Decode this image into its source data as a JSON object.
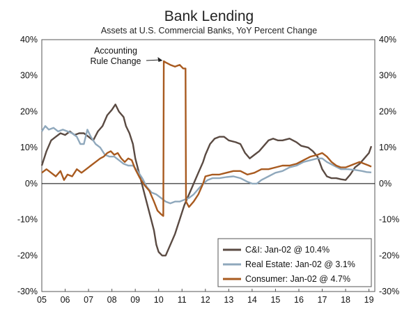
{
  "chart_data": {
    "type": "line",
    "title": "Bank Lending",
    "subtitle": "Assets at U.S. Commercial Banks, YoY Percent Change",
    "xlabel": "",
    "ylabel": "",
    "xlim": [
      2005.0,
      2019.25
    ],
    "ylim": [
      -30,
      40
    ],
    "x_ticks": [
      "05",
      "06",
      "07",
      "08",
      "09",
      "10",
      "11",
      "12",
      "13",
      "14",
      "15",
      "16",
      "17",
      "18",
      "19"
    ],
    "y_ticks_left": [
      "40%",
      "30%",
      "20%",
      "10%",
      "0%",
      "-10%",
      "-20%",
      "-30%"
    ],
    "y_ticks_right": [
      "40%",
      "30%",
      "20%",
      "10%",
      "0%",
      "-10%",
      "-20%",
      "-30%"
    ],
    "y_tick_values": [
      40,
      30,
      20,
      10,
      0,
      -10,
      -20,
      -30
    ],
    "annotation": {
      "line1": "Accounting",
      "line2": "Rule Change",
      "x": 2010.2,
      "y": 34
    },
    "legend_position": "bottom-right",
    "series": [
      {
        "name": "C&I: Jan-02 @ 10.4%",
        "color": "#5a4a42",
        "points": [
          [
            2005.0,
            5
          ],
          [
            2005.2,
            9
          ],
          [
            2005.4,
            12
          ],
          [
            2005.6,
            13
          ],
          [
            2005.8,
            14
          ],
          [
            2006.0,
            13.5
          ],
          [
            2006.2,
            14.5
          ],
          [
            2006.4,
            13.5
          ],
          [
            2006.6,
            14
          ],
          [
            2006.8,
            14
          ],
          [
            2007.0,
            13
          ],
          [
            2007.2,
            12
          ],
          [
            2007.4,
            14.5
          ],
          [
            2007.6,
            16
          ],
          [
            2007.8,
            19
          ],
          [
            2008.0,
            20.5
          ],
          [
            2008.15,
            22
          ],
          [
            2008.3,
            20
          ],
          [
            2008.5,
            18.5
          ],
          [
            2008.6,
            16
          ],
          [
            2008.75,
            14
          ],
          [
            2008.9,
            11
          ],
          [
            2009.0,
            7
          ],
          [
            2009.2,
            2
          ],
          [
            2009.4,
            -3
          ],
          [
            2009.6,
            -8
          ],
          [
            2009.8,
            -13
          ],
          [
            2009.9,
            -17
          ],
          [
            2010.0,
            -19
          ],
          [
            2010.15,
            -20
          ],
          [
            2010.3,
            -20
          ],
          [
            2010.5,
            -17
          ],
          [
            2010.7,
            -14
          ],
          [
            2010.9,
            -10
          ],
          [
            2011.1,
            -6
          ],
          [
            2011.3,
            -3
          ],
          [
            2011.5,
            0
          ],
          [
            2011.7,
            3
          ],
          [
            2011.9,
            6
          ],
          [
            2012.0,
            8
          ],
          [
            2012.2,
            11
          ],
          [
            2012.4,
            12.5
          ],
          [
            2012.6,
            13
          ],
          [
            2012.8,
            13
          ],
          [
            2013.0,
            12
          ],
          [
            2013.3,
            11.5
          ],
          [
            2013.5,
            11
          ],
          [
            2013.7,
            8.5
          ],
          [
            2013.9,
            7
          ],
          [
            2014.1,
            8
          ],
          [
            2014.3,
            9
          ],
          [
            2014.5,
            10.5
          ],
          [
            2014.7,
            12
          ],
          [
            2014.9,
            12.5
          ],
          [
            2015.1,
            12
          ],
          [
            2015.3,
            12
          ],
          [
            2015.6,
            12.5
          ],
          [
            2015.9,
            11.5
          ],
          [
            2016.1,
            10.5
          ],
          [
            2016.4,
            10
          ],
          [
            2016.6,
            9
          ],
          [
            2016.8,
            7.5
          ],
          [
            2017.0,
            4
          ],
          [
            2017.2,
            2
          ],
          [
            2017.4,
            1.5
          ],
          [
            2017.6,
            1.5
          ],
          [
            2017.8,
            1.2
          ],
          [
            2018.0,
            1
          ],
          [
            2018.2,
            2.5
          ],
          [
            2018.4,
            4.5
          ],
          [
            2018.6,
            5.5
          ],
          [
            2018.8,
            7
          ],
          [
            2019.0,
            8.5
          ],
          [
            2019.1,
            10.4
          ]
        ]
      },
      {
        "name": "Real Estate: Jan-02 @ 3.1%",
        "color": "#8fa8bc",
        "points": [
          [
            2005.0,
            14.5
          ],
          [
            2005.15,
            16
          ],
          [
            2005.3,
            15
          ],
          [
            2005.5,
            15.5
          ],
          [
            2005.7,
            14.5
          ],
          [
            2005.9,
            15
          ],
          [
            2006.1,
            14.5
          ],
          [
            2006.3,
            14
          ],
          [
            2006.5,
            13
          ],
          [
            2006.65,
            11
          ],
          [
            2006.8,
            11
          ],
          [
            2006.95,
            15
          ],
          [
            2007.1,
            13
          ],
          [
            2007.3,
            11
          ],
          [
            2007.5,
            10
          ],
          [
            2007.7,
            8
          ],
          [
            2007.9,
            7.5
          ],
          [
            2008.1,
            7.5
          ],
          [
            2008.3,
            6.5
          ],
          [
            2008.5,
            5.5
          ],
          [
            2008.7,
            5
          ],
          [
            2008.9,
            5
          ],
          [
            2009.1,
            3.5
          ],
          [
            2009.3,
            1.5
          ],
          [
            2009.5,
            -1
          ],
          [
            2009.7,
            -2.5
          ],
          [
            2009.9,
            -3
          ],
          [
            2010.1,
            -4
          ],
          [
            2010.3,
            -5
          ],
          [
            2010.5,
            -5.5
          ],
          [
            2010.7,
            -5
          ],
          [
            2010.9,
            -5
          ],
          [
            2011.1,
            -4.5
          ],
          [
            2011.3,
            -4
          ],
          [
            2011.5,
            -3
          ],
          [
            2011.7,
            -1.5
          ],
          [
            2011.9,
            0
          ],
          [
            2012.1,
            1
          ],
          [
            2012.3,
            1.5
          ],
          [
            2012.6,
            1.5
          ],
          [
            2012.9,
            1.8
          ],
          [
            2013.2,
            2
          ],
          [
            2013.5,
            1.5
          ],
          [
            2013.8,
            0.5
          ],
          [
            2014.0,
            0
          ],
          [
            2014.2,
            0
          ],
          [
            2014.4,
            1
          ],
          [
            2014.7,
            2
          ],
          [
            2015.0,
            3
          ],
          [
            2015.3,
            3.5
          ],
          [
            2015.6,
            4.5
          ],
          [
            2015.9,
            5
          ],
          [
            2016.2,
            6
          ],
          [
            2016.5,
            6.5
          ],
          [
            2016.8,
            7
          ],
          [
            2017.0,
            7
          ],
          [
            2017.2,
            6
          ],
          [
            2017.5,
            5
          ],
          [
            2017.8,
            4
          ],
          [
            2018.1,
            4
          ],
          [
            2018.4,
            3.8
          ],
          [
            2018.7,
            3.5
          ],
          [
            2018.9,
            3.2
          ],
          [
            2019.1,
            3.1
          ]
        ]
      },
      {
        "name": "Consumer: Jan-02 @ 4.7%",
        "color": "#a85a1f",
        "points": [
          [
            2005.0,
            3
          ],
          [
            2005.2,
            4
          ],
          [
            2005.4,
            3
          ],
          [
            2005.6,
            2
          ],
          [
            2005.8,
            3.5
          ],
          [
            2005.95,
            1
          ],
          [
            2006.1,
            2.5
          ],
          [
            2006.3,
            2
          ],
          [
            2006.5,
            4
          ],
          [
            2006.7,
            3
          ],
          [
            2006.9,
            4
          ],
          [
            2007.1,
            5
          ],
          [
            2007.3,
            6
          ],
          [
            2007.5,
            7
          ],
          [
            2007.65,
            7.5
          ],
          [
            2007.8,
            8.5
          ],
          [
            2007.95,
            9
          ],
          [
            2008.1,
            8
          ],
          [
            2008.25,
            8.5
          ],
          [
            2008.4,
            7
          ],
          [
            2008.55,
            6
          ],
          [
            2008.7,
            7
          ],
          [
            2008.85,
            6.5
          ],
          [
            2009.0,
            4
          ],
          [
            2009.2,
            1.5
          ],
          [
            2009.4,
            -0.5
          ],
          [
            2009.6,
            -2
          ],
          [
            2009.8,
            -5
          ],
          [
            2009.95,
            -7.5
          ],
          [
            2010.1,
            -8.5
          ],
          [
            2010.2,
            -9
          ],
          [
            2010.22,
            34
          ],
          [
            2010.35,
            33.5
          ],
          [
            2010.5,
            33
          ],
          [
            2010.7,
            32.5
          ],
          [
            2010.9,
            33
          ],
          [
            2011.05,
            32
          ],
          [
            2011.15,
            32
          ],
          [
            2011.17,
            -5
          ],
          [
            2011.3,
            -6.5
          ],
          [
            2011.5,
            -5
          ],
          [
            2011.7,
            -3
          ],
          [
            2011.9,
            0
          ],
          [
            2012.0,
            2
          ],
          [
            2012.3,
            2.5
          ],
          [
            2012.6,
            2.5
          ],
          [
            2012.9,
            3
          ],
          [
            2013.2,
            3.5
          ],
          [
            2013.5,
            3.5
          ],
          [
            2013.8,
            2.5
          ],
          [
            2014.1,
            3
          ],
          [
            2014.4,
            4
          ],
          [
            2014.7,
            4
          ],
          [
            2015.0,
            4.5
          ],
          [
            2015.3,
            5
          ],
          [
            2015.6,
            5
          ],
          [
            2015.9,
            5.5
          ],
          [
            2016.2,
            6.5
          ],
          [
            2016.5,
            7.5
          ],
          [
            2016.8,
            8
          ],
          [
            2017.0,
            8.5
          ],
          [
            2017.2,
            7.5
          ],
          [
            2017.4,
            6
          ],
          [
            2017.6,
            5
          ],
          [
            2017.8,
            4.5
          ],
          [
            2018.0,
            4.5
          ],
          [
            2018.2,
            5
          ],
          [
            2018.4,
            5.5
          ],
          [
            2018.6,
            6
          ],
          [
            2018.8,
            5.5
          ],
          [
            2019.0,
            5
          ],
          [
            2019.1,
            4.7
          ]
        ]
      }
    ]
  }
}
